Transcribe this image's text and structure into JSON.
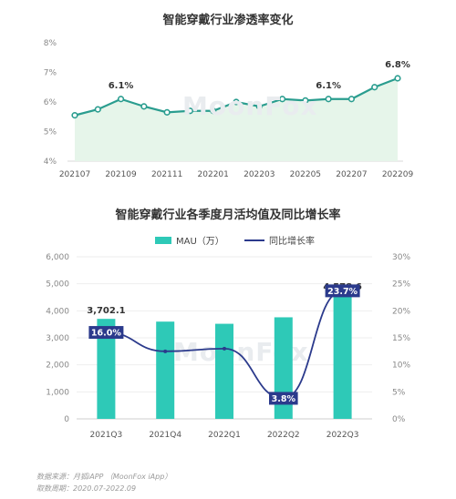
{
  "chart_data": [
    {
      "type": "area",
      "title": "智能穿戴行业渗透率变化",
      "x": [
        "202107",
        "202108",
        "202109",
        "202110",
        "202111",
        "202112",
        "202201",
        "202202",
        "202203",
        "202204",
        "202205",
        "202206",
        "202207",
        "202208",
        "202209"
      ],
      "x_tick_labels": [
        "202107",
        "202109",
        "202111",
        "202201",
        "202203",
        "202205",
        "202207",
        "202209"
      ],
      "values": [
        5.55,
        5.75,
        6.1,
        5.85,
        5.65,
        5.7,
        5.7,
        6.0,
        5.85,
        6.1,
        6.05,
        6.1,
        6.1,
        6.5,
        6.8
      ],
      "data_labels": [
        {
          "index": 2,
          "text": "6.1%"
        },
        {
          "index": 11,
          "text": "6.1%"
        },
        {
          "index": 14,
          "text": "6.8%"
        }
      ],
      "ylim": [
        4,
        8
      ],
      "y_tick_labels": [
        "4%",
        "5%",
        "6%",
        "7%",
        "8%"
      ],
      "grid": false,
      "colors": {
        "line": "#2a9d8f",
        "fill": "#e6f5ea"
      }
    },
    {
      "type": "bar",
      "title": "智能穿戴行业各季度月活均值及同比增长率",
      "categories": [
        "2021Q3",
        "2021Q4",
        "2022Q1",
        "2022Q2",
        "2022Q3"
      ],
      "series": [
        {
          "name": "MAU（万）",
          "type": "bar",
          "axis": "left",
          "values": [
            3702.1,
            3600,
            3520,
            3760,
            4578.6
          ]
        },
        {
          "name": "同比增长率",
          "type": "line",
          "axis": "right",
          "values": [
            16.0,
            12.5,
            13.0,
            3.8,
            23.7
          ]
        }
      ],
      "bar_data_labels": [
        {
          "index": 0,
          "text": "3,702.1"
        },
        {
          "index": 4,
          "text": "4,578.6"
        }
      ],
      "line_data_labels": [
        {
          "index": 0,
          "text": "16.0%"
        },
        {
          "index": 3,
          "text": "3.8%"
        },
        {
          "index": 4,
          "text": "23.7%"
        }
      ],
      "ylim": [
        0,
        6000
      ],
      "y_tick_labels": [
        "0",
        "1,000",
        "2,000",
        "3,000",
        "4,000",
        "5,000",
        "6,000"
      ],
      "y2lim": [
        0,
        30
      ],
      "y2_tick_labels": [
        "0%",
        "5%",
        "10%",
        "15%",
        "20%",
        "25%",
        "30%"
      ],
      "legend_position": "top",
      "grid": true,
      "colors": {
        "bar": "#2ec9b7",
        "line": "#2b3a8c",
        "label_box": "#2b3a8c"
      }
    }
  ],
  "watermark": "MoonFox",
  "footer": {
    "source": "数据来源：月狐iAPP （MoonFox iApp）",
    "period": "取数周期：2020.07-2022.09"
  }
}
